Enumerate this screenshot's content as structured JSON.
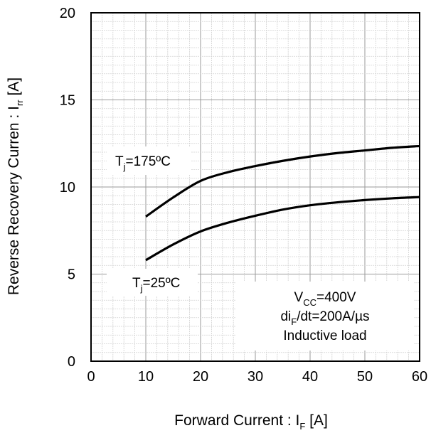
{
  "chart_data": {
    "type": "line",
    "xlabel": "Forward Current  : I",
    "xlabel_sub": "F",
    "xlabel_unit": " [A]",
    "ylabel": "Reverse Recovery Curren : I",
    "ylabel_sub": "rr",
    "ylabel_unit": " [A]",
    "xlim": [
      0,
      60
    ],
    "ylim": [
      0,
      20
    ],
    "x_ticks": [
      "0",
      "10",
      "20",
      "30",
      "40",
      "50",
      "60"
    ],
    "y_ticks": [
      "0",
      "5",
      "10",
      "15",
      "20"
    ],
    "grid": true,
    "series": [
      {
        "name": "Tj=175ºC",
        "x": [
          10,
          15,
          20,
          25,
          30,
          35,
          40,
          45,
          50,
          55,
          60
        ],
        "y": [
          8.3,
          9.4,
          10.35,
          10.85,
          11.2,
          11.5,
          11.75,
          11.95,
          12.1,
          12.25,
          12.35
        ]
      },
      {
        "name": "Tj=25ºC",
        "x": [
          10,
          15,
          20,
          25,
          30,
          35,
          40,
          45,
          50,
          55,
          60
        ],
        "y": [
          5.8,
          6.7,
          7.45,
          7.95,
          8.35,
          8.7,
          8.95,
          9.12,
          9.25,
          9.35,
          9.42
        ]
      }
    ],
    "annotations": {
      "tj175": {
        "main": "T",
        "sub": "j",
        "rest": "=175ºC"
      },
      "tj25": {
        "main": "T",
        "sub": "j",
        "rest": "=25ºC"
      },
      "conditions": {
        "vcc_main": "V",
        "vcc_sub": "CC",
        "vcc_rest": "=400V",
        "di_main": "di",
        "di_sub": "F",
        "di_rest": "/dt=200A/µs",
        "load": "Inductive load"
      }
    }
  }
}
